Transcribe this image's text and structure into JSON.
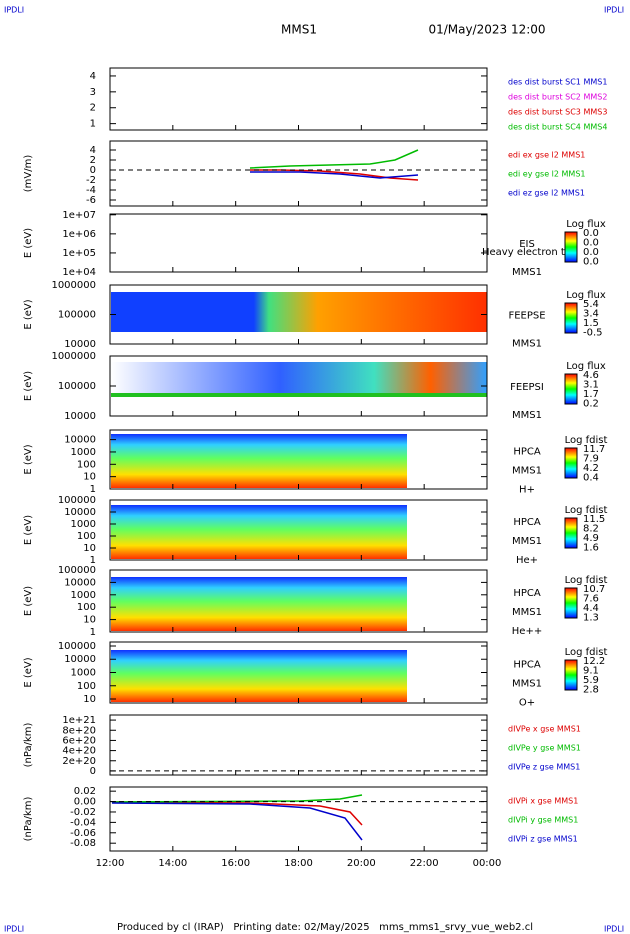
{
  "header": {
    "corner_marks": [
      "IPDLI",
      "IPDLI",
      "IPDLI",
      "IPDLI"
    ],
    "title": "MMS1",
    "date": "01/May/2023 12:00"
  },
  "xlim": [
    12,
    24
  ],
  "xticks": [
    {
      "value": 12,
      "label": "12:00"
    },
    {
      "value": 14,
      "label": "14:00"
    },
    {
      "value": 16,
      "label": "16:00"
    },
    {
      "value": 18,
      "label": "18:00"
    },
    {
      "value": 20,
      "label": "20:00"
    },
    {
      "value": 22,
      "label": "22:00"
    },
    {
      "value": 24,
      "label": "00:00"
    }
  ],
  "panels": [
    {
      "ylim": [
        0.6,
        4.5
      ],
      "log": false,
      "yticks": [
        1,
        2,
        3,
        4
      ],
      "legend": [
        {
          "text": "des dist burst SC1 MMS1",
          "color": "#0000cc"
        },
        {
          "text": "des dist burst SC2 MMS2",
          "color": "#dd00dd"
        },
        {
          "text": "des dist burst SC3 MMS3",
          "color": "#dd0000"
        },
        {
          "text": "des dist burst SC4 MMS4",
          "color": "#00bb00"
        }
      ]
    },
    {
      "ylabel": "(mV/m)",
      "ylim": [
        -7.2,
        5.8
      ],
      "log": false,
      "zero_line": true,
      "yticks": [
        4,
        2,
        0,
        -2,
        -4,
        -6
      ],
      "legend": [
        {
          "text": "edi ex gse l2 MMS1",
          "color": "#dd0000"
        },
        {
          "text": "edi ey gse l2 MMS1",
          "color": "#00bb00"
        },
        {
          "text": "edi ez gse l2 MMS1",
          "color": "#0000cc"
        }
      ]
    },
    {
      "ylabel": "E (eV)",
      "ylim": [
        10000,
        11000000
      ],
      "log": true,
      "yticks": [
        {
          "value": 10000000,
          "label": "1e+07"
        },
        {
          "value": 1000000,
          "label": "1e+06"
        },
        {
          "value": 100000,
          "label": "1e+05"
        },
        {
          "value": 10000,
          "label": "1e+04"
        }
      ],
      "labels": [
        "EIS",
        "MMS1"
      ],
      "note": "Heavy electron tof",
      "colorbar": {
        "title": "Log flux",
        "ticks": [
          "0.0",
          "0.0",
          "0.0",
          "0.0"
        ]
      }
    },
    {
      "ylabel": "E (eV)",
      "ylim": [
        10000,
        1000000
      ],
      "log": true,
      "yticks": [
        1000000,
        100000,
        10000
      ],
      "labels": [
        "FEEPSE",
        "MMS1"
      ],
      "colorbar": {
        "title": "Log flux",
        "ticks": [
          "5.4",
          "3.4",
          "1.5",
          "-0.5"
        ]
      }
    },
    {
      "ylabel": "E (eV)",
      "ylim": [
        10000,
        1000000
      ],
      "log": true,
      "yticks": [
        1000000,
        100000,
        10000
      ],
      "labels": [
        "FEEPSI",
        "MMS1"
      ],
      "colorbar": {
        "title": "Log flux",
        "ticks": [
          "4.6",
          "3.1",
          "1.7",
          "0.2"
        ]
      }
    },
    {
      "ylabel": "E (eV)",
      "ylim": [
        1,
        60000
      ],
      "log": true,
      "yticks": [
        10000,
        1000,
        100,
        10,
        1
      ],
      "labels": [
        "HPCA",
        "MMS1",
        "H+"
      ],
      "colorbar": {
        "title": "Log fdist",
        "ticks": [
          "11.7",
          "7.9",
          "4.2",
          "0.4"
        ]
      }
    },
    {
      "ylabel": "E (eV)",
      "ylim": [
        1,
        100000
      ],
      "log": true,
      "yticks": [
        100000,
        10000,
        1000,
        100,
        10,
        1
      ],
      "labels": [
        "HPCA",
        "MMS1",
        "He+"
      ],
      "colorbar": {
        "title": "Log fdist",
        "ticks": [
          "11.5",
          "8.2",
          "4.9",
          "1.6"
        ]
      }
    },
    {
      "ylabel": "E (eV)",
      "ylim": [
        1,
        100000
      ],
      "log": true,
      "yticks": [
        100000,
        10000,
        1000,
        100,
        10,
        1
      ],
      "labels": [
        "HPCA",
        "MMS1",
        "He++"
      ],
      "colorbar": {
        "title": "Log fdist",
        "ticks": [
          "10.7",
          "7.6",
          "4.4",
          "1.3"
        ]
      }
    },
    {
      "ylabel": "E (eV)",
      "ylim": [
        5,
        200000
      ],
      "log": true,
      "yticks": [
        100000,
        10000,
        1000,
        100,
        10
      ],
      "labels": [
        "HPCA",
        "MMS1",
        "O+"
      ],
      "colorbar": {
        "title": "Log fdist",
        "ticks": [
          "12.2",
          "9.1",
          "5.9",
          "2.8"
        ]
      }
    },
    {
      "ylabel": "(nPa/km)",
      "ylim": [
        -8e+19,
        1.1e+21
      ],
      "log": false,
      "zero_line": true,
      "yticks": [
        {
          "value": 1e+21,
          "label": "1e+21"
        },
        {
          "value": 8e+20,
          "label": "8e+20"
        },
        {
          "value": 6e+20,
          "label": "6e+20"
        },
        {
          "value": 4e+20,
          "label": "4e+20"
        },
        {
          "value": 2e+20,
          "label": "2e+20"
        },
        0
      ],
      "legend": [
        {
          "text": "dIVPe x gse MMS1",
          "color": "#dd0000"
        },
        {
          "text": "dIVPe y gse MMS1",
          "color": "#00bb00"
        },
        {
          "text": "dIVPe z gse MMS1",
          "color": "#0000cc"
        }
      ]
    },
    {
      "ylabel": "(nPa/km)",
      "ylim": [
        -0.095,
        0.028
      ],
      "log": false,
      "zero_line": true,
      "yticks": [
        0.02,
        {
          "value": 0,
          "label": "0.00"
        },
        {
          "value": -0.02,
          "label": "-0.02"
        },
        {
          "value": -0.04,
          "label": "-0.04"
        },
        {
          "value": -0.06,
          "label": "-0.06"
        },
        {
          "value": -0.08,
          "label": "-0.08"
        }
      ],
      "legend": [
        {
          "text": "dIVPi x gse MMS1",
          "color": "#dd0000"
        },
        {
          "text": "dIVPi y gse MMS1",
          "color": "#00bb00"
        },
        {
          "text": "dIVPi z gse MMS1",
          "color": "#0000cc"
        }
      ]
    }
  ],
  "footer": "Produced by cl (IRAP)   Printing date: 02/May/2025   mms_mms1_srvy_vue_web2.cl"
}
